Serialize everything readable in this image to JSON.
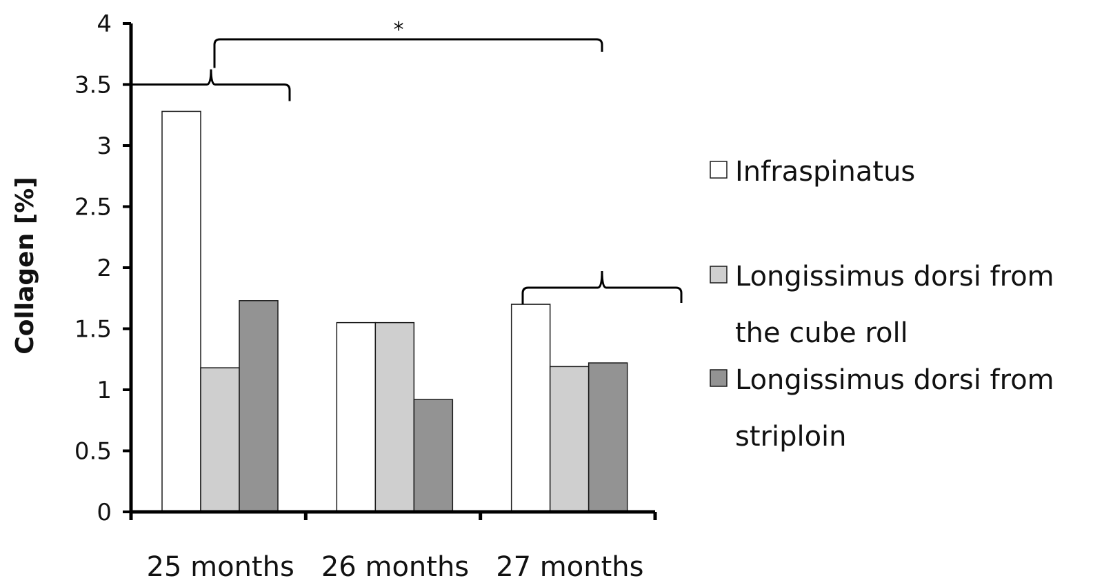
{
  "chart_data": {
    "type": "bar",
    "categories": [
      "25 months",
      "26 months",
      "27 months"
    ],
    "series": [
      {
        "name": "Infraspinatus",
        "values": [
          3.28,
          1.55,
          1.7
        ],
        "color": "#ffffff"
      },
      {
        "name": "Longissimus dorsi from the cube roll",
        "values": [
          1.18,
          1.55,
          1.19
        ],
        "color": "#cfcfcf"
      },
      {
        "name": "Longissimus dorsi from striploin",
        "values": [
          1.73,
          0.92,
          1.22
        ],
        "color": "#939393"
      }
    ],
    "ylabel": "Collagen [%]",
    "xlabel": "",
    "title": "",
    "ylim": [
      0,
      4
    ],
    "yticks": [
      {
        "value": 0,
        "label": "0"
      },
      {
        "value": 0.5,
        "label": "0.5"
      },
      {
        "value": 1,
        "label": "1"
      },
      {
        "value": 1.5,
        "label": "1.5"
      },
      {
        "value": 2,
        "label": "2"
      },
      {
        "value": 2.5,
        "label": "2.5"
      },
      {
        "value": 3,
        "label": "3"
      },
      {
        "value": 3.5,
        "label": "3.5"
      },
      {
        "value": 4,
        "label": "4"
      }
    ],
    "legend": {
      "placement": "right",
      "entries": [
        {
          "lines": [
            "Infraspinatus"
          ]
        },
        {
          "lines": [
            "Longissimus dorsi from",
            "the cube roll"
          ]
        },
        {
          "lines": [
            "Longissimus dorsi from",
            "striploin"
          ]
        }
      ]
    },
    "annotations": [
      {
        "text": "*",
        "between": [
          "25 months",
          "27 months"
        ]
      }
    ],
    "grid": false
  }
}
